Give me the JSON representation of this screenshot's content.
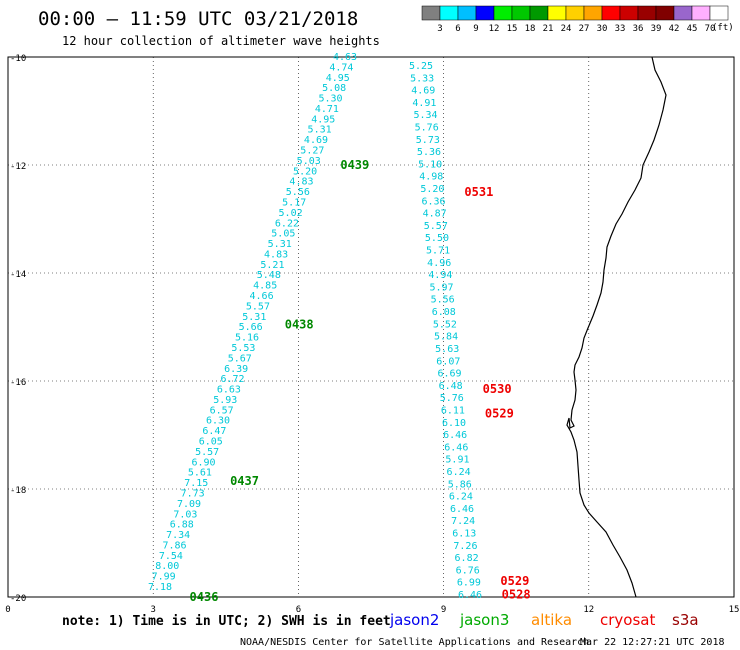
{
  "header": {
    "title": "00:00 – 11:59 UTC 03/21/2018",
    "subtitle": "12 hour collection of altimeter wave heights"
  },
  "legend": {
    "unit_label": "(ft)",
    "bins": [
      {
        "label": "",
        "color": "#808080"
      },
      {
        "label": "3",
        "color": "#00ffff"
      },
      {
        "label": "6",
        "color": "#00bfff"
      },
      {
        "label": "9",
        "color": "#0000ff"
      },
      {
        "label": "12",
        "color": "#00ee00"
      },
      {
        "label": "15",
        "color": "#00c800"
      },
      {
        "label": "18",
        "color": "#009900"
      },
      {
        "label": "21",
        "color": "#ffff00"
      },
      {
        "label": "24",
        "color": "#ffd000"
      },
      {
        "label": "27",
        "color": "#ffa500"
      },
      {
        "label": "30",
        "color": "#ff0000"
      },
      {
        "label": "33",
        "color": "#cc0000"
      },
      {
        "label": "36",
        "color": "#990000"
      },
      {
        "label": "39",
        "color": "#800000"
      },
      {
        "label": "42",
        "color": "#9966cc"
      },
      {
        "label": "45",
        "color": "#ffb0ff"
      },
      {
        "label": "70",
        "color": "#ffffff"
      }
    ]
  },
  "axes": {
    "x_ticks": [
      "0",
      "3",
      "6",
      "9",
      "12",
      "15"
    ],
    "y_ticks": [
      "-10",
      "-12",
      "-14",
      "-16",
      "-18",
      "-20"
    ]
  },
  "footer": {
    "note": "note: 1) Time is in UTC; 2) SWH is in feet",
    "credit": "NOAA/NESDIS Center for Satellite Applications and Research",
    "timestamp": "Mar 22 12:27:21 UTC 2018",
    "satellites": [
      {
        "name": "jason2",
        "color": "#0000ee"
      },
      {
        "name": "jason3",
        "color": "#00aa00"
      },
      {
        "name": "altika",
        "color": "#ff8c00"
      },
      {
        "name": "cryosat",
        "color": "#ee0000"
      },
      {
        "name": "s3a",
        "color": "#990000"
      }
    ]
  },
  "colors": {
    "track_value": "#00c8d8",
    "jason3_time": "#008800",
    "cryosat_time": "#ee0000",
    "grid": "#000000"
  },
  "tracks": [
    {
      "satellite": "jason3",
      "values": [
        "4.63",
        "4.74",
        "4.95",
        "5.08",
        "5.30",
        "4.71",
        "4.95",
        "5.31",
        "4.69",
        "5.27",
        "5.03",
        "5.20",
        "4.83",
        "5.56",
        "5.17",
        "5.02",
        "6.22",
        "5.05",
        "5.31",
        "4.83",
        "5.21",
        "5.48",
        "4.85",
        "4.66",
        "5.57",
        "5.31",
        "5.66",
        "5.16",
        "5.53",
        "5.67",
        "6.39",
        "6.72",
        "6.63",
        "5.93",
        "6.57",
        "6.30",
        "6.47",
        "6.05",
        "5.57",
        "6.90",
        "5.61",
        "7.15",
        "7.73",
        "7.09",
        "7.03",
        "6.88",
        "7.34",
        "7.86",
        "7.54",
        "8.00",
        "7.99",
        "7.18"
      ],
      "time_labels": [
        {
          "text": "0439",
          "lat": -12.0
        },
        {
          "text": "0438",
          "lat": -14.95
        },
        {
          "text": "0437",
          "lat": -17.85
        },
        {
          "text": "0436",
          "lat": -20.0
        }
      ]
    },
    {
      "satellite": "cryosat",
      "values": [
        "5.25",
        "5.33",
        "4.69",
        "4.91",
        "5.34",
        "5.76",
        "5.73",
        "5.36",
        "5.10",
        "4.98",
        "5.20",
        "6.36",
        "4.87",
        "5.57",
        "5.50",
        "5.71",
        "4.96",
        "4.94",
        "5.97",
        "5.56",
        "6.08",
        "5.52",
        "5.84",
        "5.63",
        "6.07",
        "6.69",
        "6.48",
        "5.76",
        "6.11",
        "6.10",
        "6.46",
        "6.46",
        "5.91",
        "6.24",
        "5.86",
        "6.24",
        "6.46",
        "7.24",
        "6.13",
        "7.26",
        "6.82",
        "6.76",
        "6.99",
        "6.46"
      ],
      "time_labels": [
        {
          "text": "0531",
          "lat": -12.5
        },
        {
          "text": "0530",
          "lat": -16.15
        },
        {
          "text": "0529",
          "lat": -16.6
        },
        {
          "text": "0529",
          "lat": -19.7
        },
        {
          "text": "0528",
          "lat": -19.95
        }
      ]
    }
  ]
}
